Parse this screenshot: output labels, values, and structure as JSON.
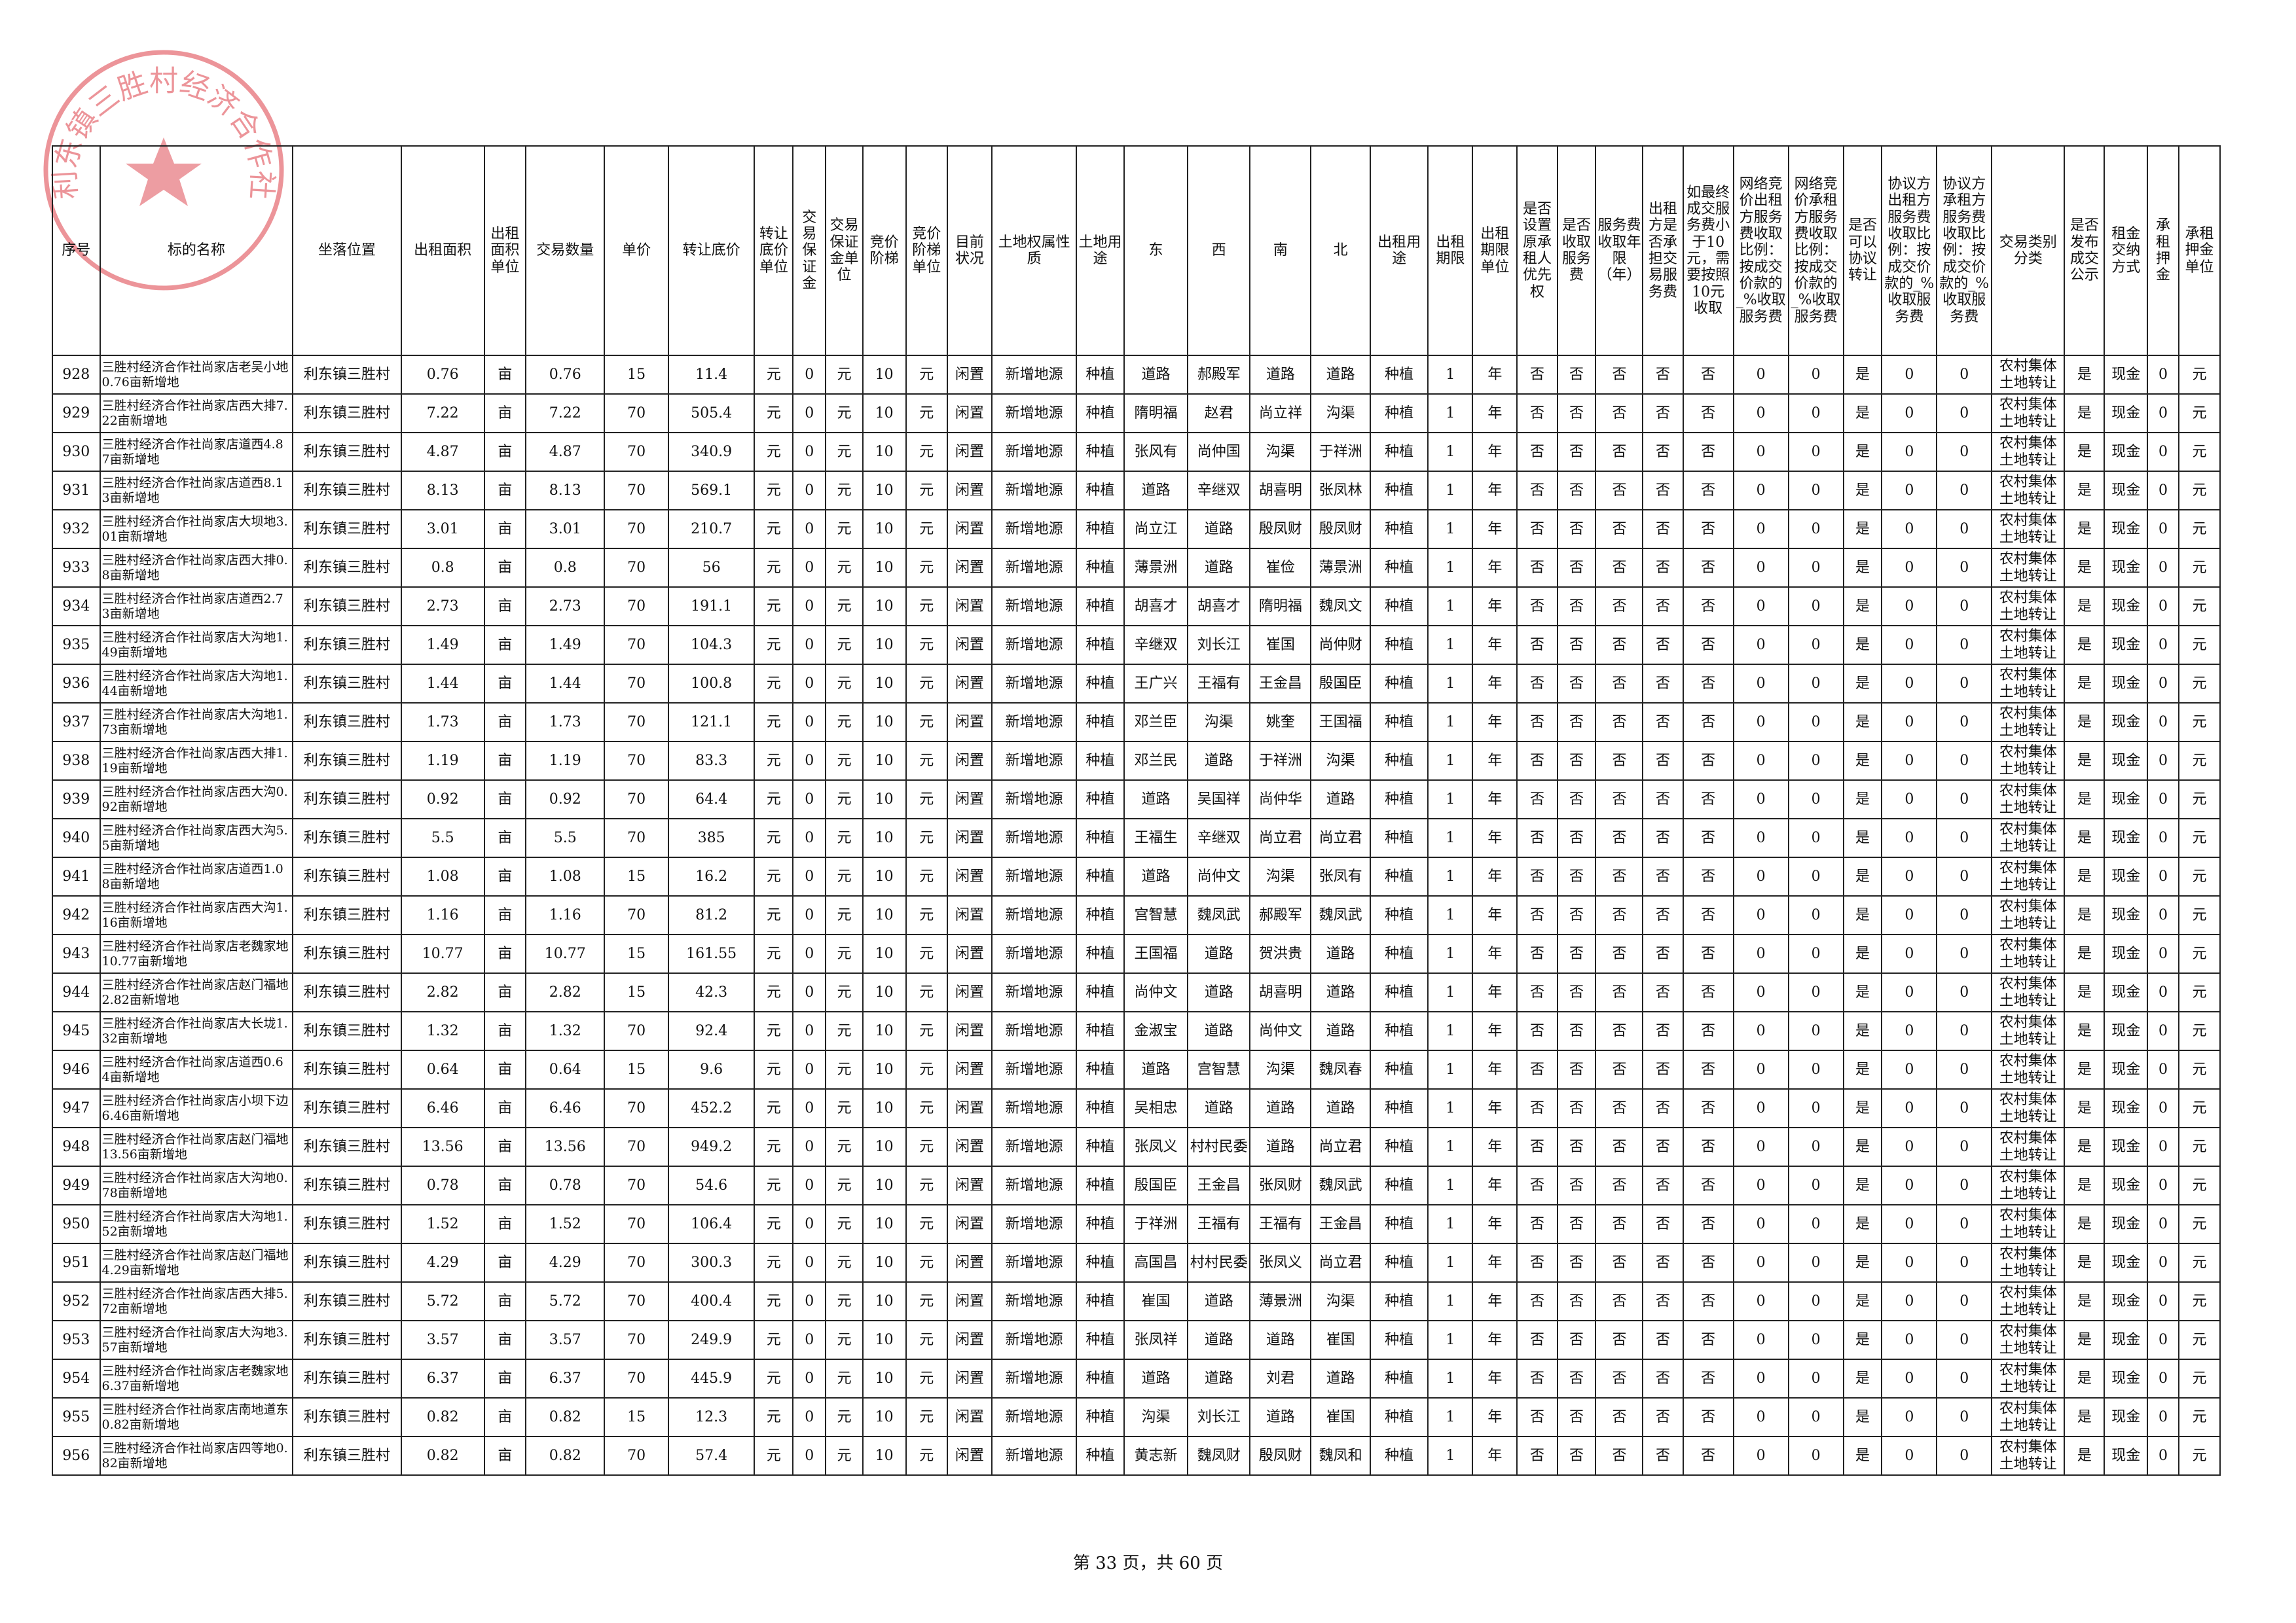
{
  "stamp": "利东镇三胜村经济合作社",
  "table": {
    "headers": [
      "序号",
      "标的名称",
      "坐落位置",
      "出租面积",
      "出租面积单位",
      "交易数量",
      "单价",
      "转让底价",
      "转让底价单位",
      "交易保证金",
      "交易保证金单位",
      "竞价阶梯",
      "竞价阶梯单位",
      "目前状况",
      "土地权属性质",
      "土地用途",
      "东",
      "西",
      "南",
      "北",
      "出租用途",
      "出租期限",
      "出租期限单位",
      "是否设置原承租人优先权",
      "是否收取服务费",
      "服务费收取年限（年）",
      "出租方是否承担交易服务费",
      "如最终成交服务费小于10元，需要按照10元收取",
      "网络竞价出租方服务费收取比例：按成交价款的_%收取服务费",
      "网络竞价承租方服务费收取比例：按成交价款的_%收取服务费",
      "是否可以协议转让",
      "协议方出租方服务费收取比例：按成交价款的_%收取服务费",
      "协议方承租方服务费收取比例：按成交价款的_%收取服务费",
      "交易类别分类",
      "是否发布成交公示",
      "租金交纳方式",
      "承租押金",
      "承租押金单位"
    ],
    "rows": [
      [
        928,
        "三胜村经济合作社尚家店老吴小地0.76亩新增地",
        "利东镇三胜村",
        0.76,
        "亩",
        0.76,
        15,
        11.4,
        "元",
        0,
        "元",
        10,
        "元",
        "闲置",
        "新增地源",
        "种植",
        "道路",
        "郝殿军",
        "道路",
        "道路",
        "种植",
        1,
        "年",
        "否",
        "否",
        "否",
        "否",
        "否",
        0,
        0,
        "是",
        0,
        0,
        "农村集体土地转让",
        "是",
        "现金",
        0,
        "元"
      ],
      [
        929,
        "三胜村经济合作社尚家店西大排7.22亩新增地",
        "利东镇三胜村",
        7.22,
        "亩",
        7.22,
        70,
        505.4,
        "元",
        0,
        "元",
        10,
        "元",
        "闲置",
        "新增地源",
        "种植",
        "隋明福",
        "赵君",
        "尚立祥",
        "沟渠",
        "种植",
        1,
        "年",
        "否",
        "否",
        "否",
        "否",
        "否",
        0,
        0,
        "是",
        0,
        0,
        "农村集体土地转让",
        "是",
        "现金",
        0,
        "元"
      ],
      [
        930,
        "三胜村经济合作社尚家店道西4.87亩新增地",
        "利东镇三胜村",
        4.87,
        "亩",
        4.87,
        70,
        340.9,
        "元",
        0,
        "元",
        10,
        "元",
        "闲置",
        "新增地源",
        "种植",
        "张风有",
        "尚仲国",
        "沟渠",
        "于祥洲",
        "种植",
        1,
        "年",
        "否",
        "否",
        "否",
        "否",
        "否",
        0,
        0,
        "是",
        0,
        0,
        "农村集体土地转让",
        "是",
        "现金",
        0,
        "元"
      ],
      [
        931,
        "三胜村经济合作社尚家店道西8.13亩新增地",
        "利东镇三胜村",
        8.13,
        "亩",
        8.13,
        70,
        569.1,
        "元",
        0,
        "元",
        10,
        "元",
        "闲置",
        "新增地源",
        "种植",
        "道路",
        "辛继双",
        "胡喜明",
        "张凤林",
        "种植",
        1,
        "年",
        "否",
        "否",
        "否",
        "否",
        "否",
        0,
        0,
        "是",
        0,
        0,
        "农村集体土地转让",
        "是",
        "现金",
        0,
        "元"
      ],
      [
        932,
        "三胜村经济合作社尚家店大坝地3.01亩新增地",
        "利东镇三胜村",
        3.01,
        "亩",
        3.01,
        70,
        210.7,
        "元",
        0,
        "元",
        10,
        "元",
        "闲置",
        "新增地源",
        "种植",
        "尚立江",
        "道路",
        "殷凤财",
        "殷凤财",
        "种植",
        1,
        "年",
        "否",
        "否",
        "否",
        "否",
        "否",
        0,
        0,
        "是",
        0,
        0,
        "农村集体土地转让",
        "是",
        "现金",
        0,
        "元"
      ],
      [
        933,
        "三胜村经济合作社尚家店西大排0.8亩新增地",
        "利东镇三胜村",
        0.8,
        "亩",
        0.8,
        70,
        56,
        "元",
        0,
        "元",
        10,
        "元",
        "闲置",
        "新增地源",
        "种植",
        "薄景洲",
        "道路",
        "崔俭",
        "薄景洲",
        "种植",
        1,
        "年",
        "否",
        "否",
        "否",
        "否",
        "否",
        0,
        0,
        "是",
        0,
        0,
        "农村集体土地转让",
        "是",
        "现金",
        0,
        "元"
      ],
      [
        934,
        "三胜村经济合作社尚家店道西2.73亩新增地",
        "利东镇三胜村",
        2.73,
        "亩",
        2.73,
        70,
        191.1,
        "元",
        0,
        "元",
        10,
        "元",
        "闲置",
        "新增地源",
        "种植",
        "胡喜才",
        "胡喜才",
        "隋明福",
        "魏凤文",
        "种植",
        1,
        "年",
        "否",
        "否",
        "否",
        "否",
        "否",
        0,
        0,
        "是",
        0,
        0,
        "农村集体土地转让",
        "是",
        "现金",
        0,
        "元"
      ],
      [
        935,
        "三胜村经济合作社尚家店大沟地1.49亩新增地",
        "利东镇三胜村",
        1.49,
        "亩",
        1.49,
        70,
        104.3,
        "元",
        0,
        "元",
        10,
        "元",
        "闲置",
        "新增地源",
        "种植",
        "辛继双",
        "刘长江",
        "崔国",
        "尚仲财",
        "种植",
        1,
        "年",
        "否",
        "否",
        "否",
        "否",
        "否",
        0,
        0,
        "是",
        0,
        0,
        "农村集体土地转让",
        "是",
        "现金",
        0,
        "元"
      ],
      [
        936,
        "三胜村经济合作社尚家店大沟地1.44亩新增地",
        "利东镇三胜村",
        1.44,
        "亩",
        1.44,
        70,
        100.8,
        "元",
        0,
        "元",
        10,
        "元",
        "闲置",
        "新增地源",
        "种植",
        "王广兴",
        "王福有",
        "王金昌",
        "殷国臣",
        "种植",
        1,
        "年",
        "否",
        "否",
        "否",
        "否",
        "否",
        0,
        0,
        "是",
        0,
        0,
        "农村集体土地转让",
        "是",
        "现金",
        0,
        "元"
      ],
      [
        937,
        "三胜村经济合作社尚家店大沟地1.73亩新增地",
        "利东镇三胜村",
        1.73,
        "亩",
        1.73,
        70,
        121.1,
        "元",
        0,
        "元",
        10,
        "元",
        "闲置",
        "新增地源",
        "种植",
        "邓兰臣",
        "沟渠",
        "姚奎",
        "王国福",
        "种植",
        1,
        "年",
        "否",
        "否",
        "否",
        "否",
        "否",
        0,
        0,
        "是",
        0,
        0,
        "农村集体土地转让",
        "是",
        "现金",
        0,
        "元"
      ],
      [
        938,
        "三胜村经济合作社尚家店西大排1.19亩新增地",
        "利东镇三胜村",
        1.19,
        "亩",
        1.19,
        70,
        83.3,
        "元",
        0,
        "元",
        10,
        "元",
        "闲置",
        "新增地源",
        "种植",
        "邓兰民",
        "道路",
        "于祥洲",
        "沟渠",
        "种植",
        1,
        "年",
        "否",
        "否",
        "否",
        "否",
        "否",
        0,
        0,
        "是",
        0,
        0,
        "农村集体土地转让",
        "是",
        "现金",
        0,
        "元"
      ],
      [
        939,
        "三胜村经济合作社尚家店西大沟0.92亩新增地",
        "利东镇三胜村",
        0.92,
        "亩",
        0.92,
        70,
        64.4,
        "元",
        0,
        "元",
        10,
        "元",
        "闲置",
        "新增地源",
        "种植",
        "道路",
        "吴国祥",
        "尚仲华",
        "道路",
        "种植",
        1,
        "年",
        "否",
        "否",
        "否",
        "否",
        "否",
        0,
        0,
        "是",
        0,
        0,
        "农村集体土地转让",
        "是",
        "现金",
        0,
        "元"
      ],
      [
        940,
        "三胜村经济合作社尚家店西大沟5.5亩新增地",
        "利东镇三胜村",
        5.5,
        "亩",
        5.5,
        70,
        385,
        "元",
        0,
        "元",
        10,
        "元",
        "闲置",
        "新增地源",
        "种植",
        "王福生",
        "辛继双",
        "尚立君",
        "尚立君",
        "种植",
        1,
        "年",
        "否",
        "否",
        "否",
        "否",
        "否",
        0,
        0,
        "是",
        0,
        0,
        "农村集体土地转让",
        "是",
        "现金",
        0,
        "元"
      ],
      [
        941,
        "三胜村经济合作社尚家店道西1.08亩新增地",
        "利东镇三胜村",
        1.08,
        "亩",
        1.08,
        15,
        16.2,
        "元",
        0,
        "元",
        10,
        "元",
        "闲置",
        "新增地源",
        "种植",
        "道路",
        "尚仲文",
        "沟渠",
        "张凤有",
        "种植",
        1,
        "年",
        "否",
        "否",
        "否",
        "否",
        "否",
        0,
        0,
        "是",
        0,
        0,
        "农村集体土地转让",
        "是",
        "现金",
        0,
        "元"
      ],
      [
        942,
        "三胜村经济合作社尚家店西大沟1.16亩新增地",
        "利东镇三胜村",
        1.16,
        "亩",
        1.16,
        70,
        81.2,
        "元",
        0,
        "元",
        10,
        "元",
        "闲置",
        "新增地源",
        "种植",
        "宫智慧",
        "魏凤武",
        "郝殿军",
        "魏凤武",
        "种植",
        1,
        "年",
        "否",
        "否",
        "否",
        "否",
        "否",
        0,
        0,
        "是",
        0,
        0,
        "农村集体土地转让",
        "是",
        "现金",
        0,
        "元"
      ],
      [
        943,
        "三胜村经济合作社尚家店老魏家地10.77亩新增地",
        "利东镇三胜村",
        10.77,
        "亩",
        10.77,
        15,
        161.55,
        "元",
        0,
        "元",
        10,
        "元",
        "闲置",
        "新增地源",
        "种植",
        "王国福",
        "道路",
        "贺洪贵",
        "道路",
        "种植",
        1,
        "年",
        "否",
        "否",
        "否",
        "否",
        "否",
        0,
        0,
        "是",
        0,
        0,
        "农村集体土地转让",
        "是",
        "现金",
        0,
        "元"
      ],
      [
        944,
        "三胜村经济合作社尚家店赵门福地2.82亩新增地",
        "利东镇三胜村",
        2.82,
        "亩",
        2.82,
        15,
        42.3,
        "元",
        0,
        "元",
        10,
        "元",
        "闲置",
        "新增地源",
        "种植",
        "尚仲文",
        "道路",
        "胡喜明",
        "道路",
        "种植",
        1,
        "年",
        "否",
        "否",
        "否",
        "否",
        "否",
        0,
        0,
        "是",
        0,
        0,
        "农村集体土地转让",
        "是",
        "现金",
        0,
        "元"
      ],
      [
        945,
        "三胜村经济合作社尚家店大长垅1.32亩新增地",
        "利东镇三胜村",
        1.32,
        "亩",
        1.32,
        70,
        92.4,
        "元",
        0,
        "元",
        10,
        "元",
        "闲置",
        "新增地源",
        "种植",
        "金淑宝",
        "道路",
        "尚仲文",
        "道路",
        "种植",
        1,
        "年",
        "否",
        "否",
        "否",
        "否",
        "否",
        0,
        0,
        "是",
        0,
        0,
        "农村集体土地转让",
        "是",
        "现金",
        0,
        "元"
      ],
      [
        946,
        "三胜村经济合作社尚家店道西0.64亩新增地",
        "利东镇三胜村",
        0.64,
        "亩",
        0.64,
        15,
        9.6,
        "元",
        0,
        "元",
        10,
        "元",
        "闲置",
        "新增地源",
        "种植",
        "道路",
        "宫智慧",
        "沟渠",
        "魏凤春",
        "种植",
        1,
        "年",
        "否",
        "否",
        "否",
        "否",
        "否",
        0,
        0,
        "是",
        0,
        0,
        "农村集体土地转让",
        "是",
        "现金",
        0,
        "元"
      ],
      [
        947,
        "三胜村经济合作社尚家店小坝下边6.46亩新增地",
        "利东镇三胜村",
        6.46,
        "亩",
        6.46,
        70,
        452.2,
        "元",
        0,
        "元",
        10,
        "元",
        "闲置",
        "新增地源",
        "种植",
        "吴相忠",
        "道路",
        "道路",
        "道路",
        "种植",
        1,
        "年",
        "否",
        "否",
        "否",
        "否",
        "否",
        0,
        0,
        "是",
        0,
        0,
        "农村集体土地转让",
        "是",
        "现金",
        0,
        "元"
      ],
      [
        948,
        "三胜村经济合作社尚家店赵门福地13.56亩新增地",
        "利东镇三胜村",
        13.56,
        "亩",
        13.56,
        70,
        949.2,
        "元",
        0,
        "元",
        10,
        "元",
        "闲置",
        "新增地源",
        "种植",
        "张凤义",
        "村村民委",
        "道路",
        "尚立君",
        "种植",
        1,
        "年",
        "否",
        "否",
        "否",
        "否",
        "否",
        0,
        0,
        "是",
        0,
        0,
        "农村集体土地转让",
        "是",
        "现金",
        0,
        "元"
      ],
      [
        949,
        "三胜村经济合作社尚家店大沟地0.78亩新增地",
        "利东镇三胜村",
        0.78,
        "亩",
        0.78,
        70,
        54.6,
        "元",
        0,
        "元",
        10,
        "元",
        "闲置",
        "新增地源",
        "种植",
        "殷国臣",
        "王金昌",
        "张凤财",
        "魏凤武",
        "种植",
        1,
        "年",
        "否",
        "否",
        "否",
        "否",
        "否",
        0,
        0,
        "是",
        0,
        0,
        "农村集体土地转让",
        "是",
        "现金",
        0,
        "元"
      ],
      [
        950,
        "三胜村经济合作社尚家店大沟地1.52亩新增地",
        "利东镇三胜村",
        1.52,
        "亩",
        1.52,
        70,
        106.4,
        "元",
        0,
        "元",
        10,
        "元",
        "闲置",
        "新增地源",
        "种植",
        "于祥洲",
        "王福有",
        "王福有",
        "王金昌",
        "种植",
        1,
        "年",
        "否",
        "否",
        "否",
        "否",
        "否",
        0,
        0,
        "是",
        0,
        0,
        "农村集体土地转让",
        "是",
        "现金",
        0,
        "元"
      ],
      [
        951,
        "三胜村经济合作社尚家店赵门福地4.29亩新增地",
        "利东镇三胜村",
        4.29,
        "亩",
        4.29,
        70,
        300.3,
        "元",
        0,
        "元",
        10,
        "元",
        "闲置",
        "新增地源",
        "种植",
        "高国昌",
        "村村民委",
        "张凤义",
        "尚立君",
        "种植",
        1,
        "年",
        "否",
        "否",
        "否",
        "否",
        "否",
        0,
        0,
        "是",
        0,
        0,
        "农村集体土地转让",
        "是",
        "现金",
        0,
        "元"
      ],
      [
        952,
        "三胜村经济合作社尚家店西大排5.72亩新增地",
        "利东镇三胜村",
        5.72,
        "亩",
        5.72,
        70,
        400.4,
        "元",
        0,
        "元",
        10,
        "元",
        "闲置",
        "新增地源",
        "种植",
        "崔国",
        "道路",
        "薄景洲",
        "沟渠",
        "种植",
        1,
        "年",
        "否",
        "否",
        "否",
        "否",
        "否",
        0,
        0,
        "是",
        0,
        0,
        "农村集体土地转让",
        "是",
        "现金",
        0,
        "元"
      ],
      [
        953,
        "三胜村经济合作社尚家店大沟地3.57亩新增地",
        "利东镇三胜村",
        3.57,
        "亩",
        3.57,
        70,
        249.9,
        "元",
        0,
        "元",
        10,
        "元",
        "闲置",
        "新增地源",
        "种植",
        "张凤祥",
        "道路",
        "道路",
        "崔国",
        "种植",
        1,
        "年",
        "否",
        "否",
        "否",
        "否",
        "否",
        0,
        0,
        "是",
        0,
        0,
        "农村集体土地转让",
        "是",
        "现金",
        0,
        "元"
      ],
      [
        954,
        "三胜村经济合作社尚家店老魏家地6.37亩新增地",
        "利东镇三胜村",
        6.37,
        "亩",
        6.37,
        70,
        445.9,
        "元",
        0,
        "元",
        10,
        "元",
        "闲置",
        "新增地源",
        "种植",
        "道路",
        "道路",
        "刘君",
        "道路",
        "种植",
        1,
        "年",
        "否",
        "否",
        "否",
        "否",
        "否",
        0,
        0,
        "是",
        0,
        0,
        "农村集体土地转让",
        "是",
        "现金",
        0,
        "元"
      ],
      [
        955,
        "三胜村经济合作社尚家店南地道东0.82亩新增地",
        "利东镇三胜村",
        0.82,
        "亩",
        0.82,
        15,
        12.3,
        "元",
        0,
        "元",
        10,
        "元",
        "闲置",
        "新增地源",
        "种植",
        "沟渠",
        "刘长江",
        "道路",
        "崔国",
        "种植",
        1,
        "年",
        "否",
        "否",
        "否",
        "否",
        "否",
        0,
        0,
        "是",
        0,
        0,
        "农村集体土地转让",
        "是",
        "现金",
        0,
        "元"
      ],
      [
        956,
        "三胜村经济合作社尚家店四等地0.82亩新增地",
        "利东镇三胜村",
        0.82,
        "亩",
        0.82,
        70,
        57.4,
        "元",
        0,
        "元",
        10,
        "元",
        "闲置",
        "新增地源",
        "种植",
        "黄志新",
        "魏凤财",
        "殷凤财",
        "魏凤和",
        "种植",
        1,
        "年",
        "否",
        "否",
        "否",
        "否",
        "否",
        0,
        0,
        "是",
        0,
        0,
        "农村集体土地转让",
        "是",
        "现金",
        0,
        "元"
      ]
    ]
  },
  "footer": "第 33 页，共 60 页"
}
